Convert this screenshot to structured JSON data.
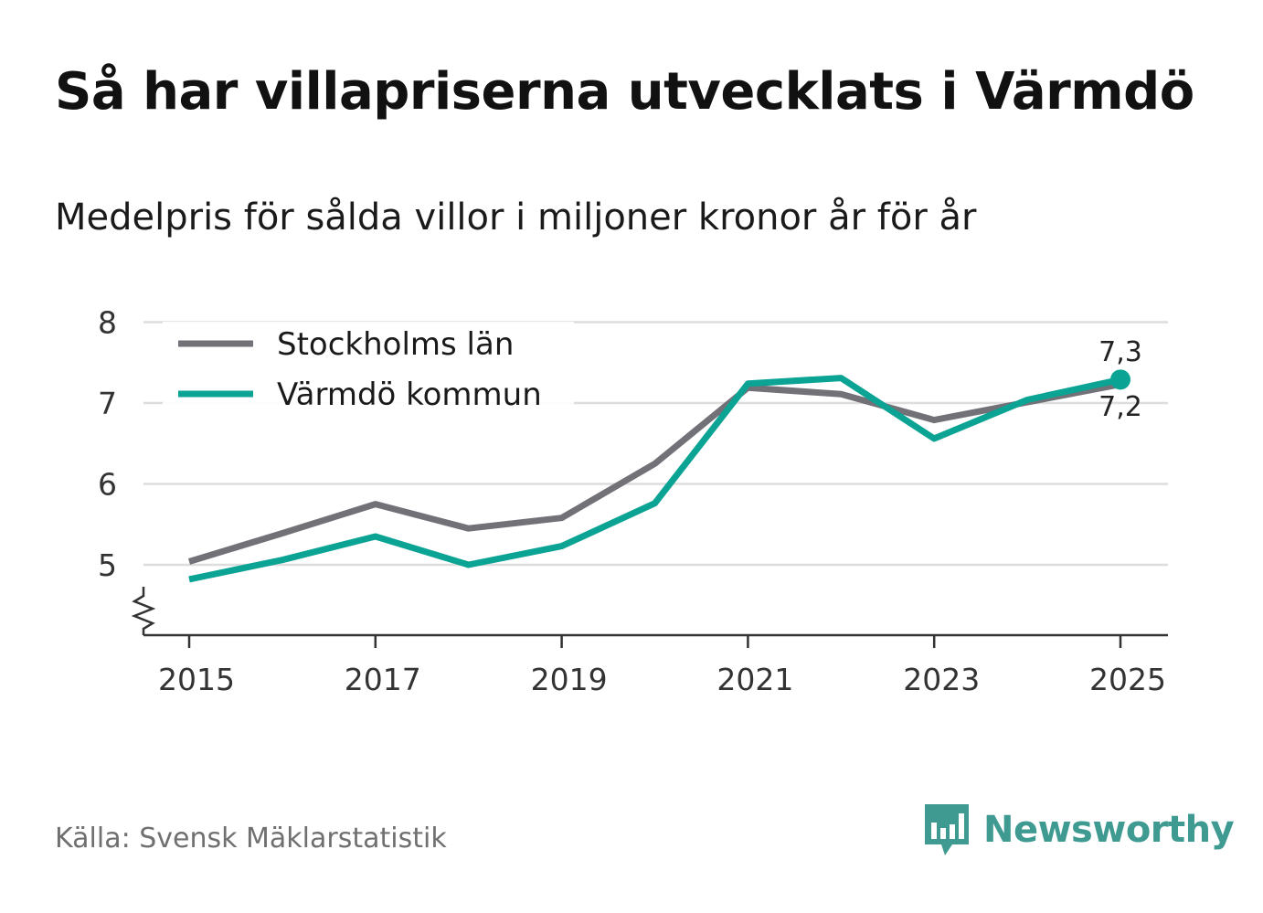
{
  "title": "Så har villapriserna utvecklats i Värmdö",
  "subtitle": "Medelpris för sålda villor i miljoner kronor år för år",
  "source": "Källa: Svensk Mäklarstatistik",
  "brand": {
    "name": "Newsworthy",
    "icon": "newsworthy-logo-icon"
  },
  "colors": {
    "stockholm": "#727178",
    "varmdo": "#0aa394",
    "grid": "#dddddd",
    "axis": "#333333"
  },
  "chart_data": {
    "type": "line",
    "title": "Så har villapriserna utvecklats i Värmdö",
    "subtitle": "Medelpris för sålda villor i miljoner kronor år för år",
    "xlabel": "",
    "ylabel": "",
    "x": [
      2015,
      2016,
      2017,
      2018,
      2019,
      2020,
      2021,
      2022,
      2023,
      2024,
      2025
    ],
    "x_ticks": [
      "2015",
      "2017",
      "2019",
      "2021",
      "2023",
      "2025"
    ],
    "y_ticks": [
      "5",
      "6",
      "7",
      "8"
    ],
    "ylim": [
      4.1,
      8
    ],
    "xlim": [
      2015,
      2025.5
    ],
    "axis_break": true,
    "legend_position": "top-left",
    "series": [
      {
        "name": "Stockholms län",
        "color": "#727178",
        "values": [
          5.04,
          5.39,
          5.75,
          5.45,
          5.58,
          6.25,
          7.19,
          7.11,
          6.79,
          7.01,
          7.23
        ],
        "end_label": "7,2"
      },
      {
        "name": "Värmdö kommun",
        "color": "#0aa394",
        "values": [
          4.82,
          5.06,
          5.35,
          5.0,
          5.23,
          5.76,
          7.24,
          7.31,
          6.56,
          7.04,
          7.29
        ],
        "end_label": "7,3"
      }
    ]
  }
}
